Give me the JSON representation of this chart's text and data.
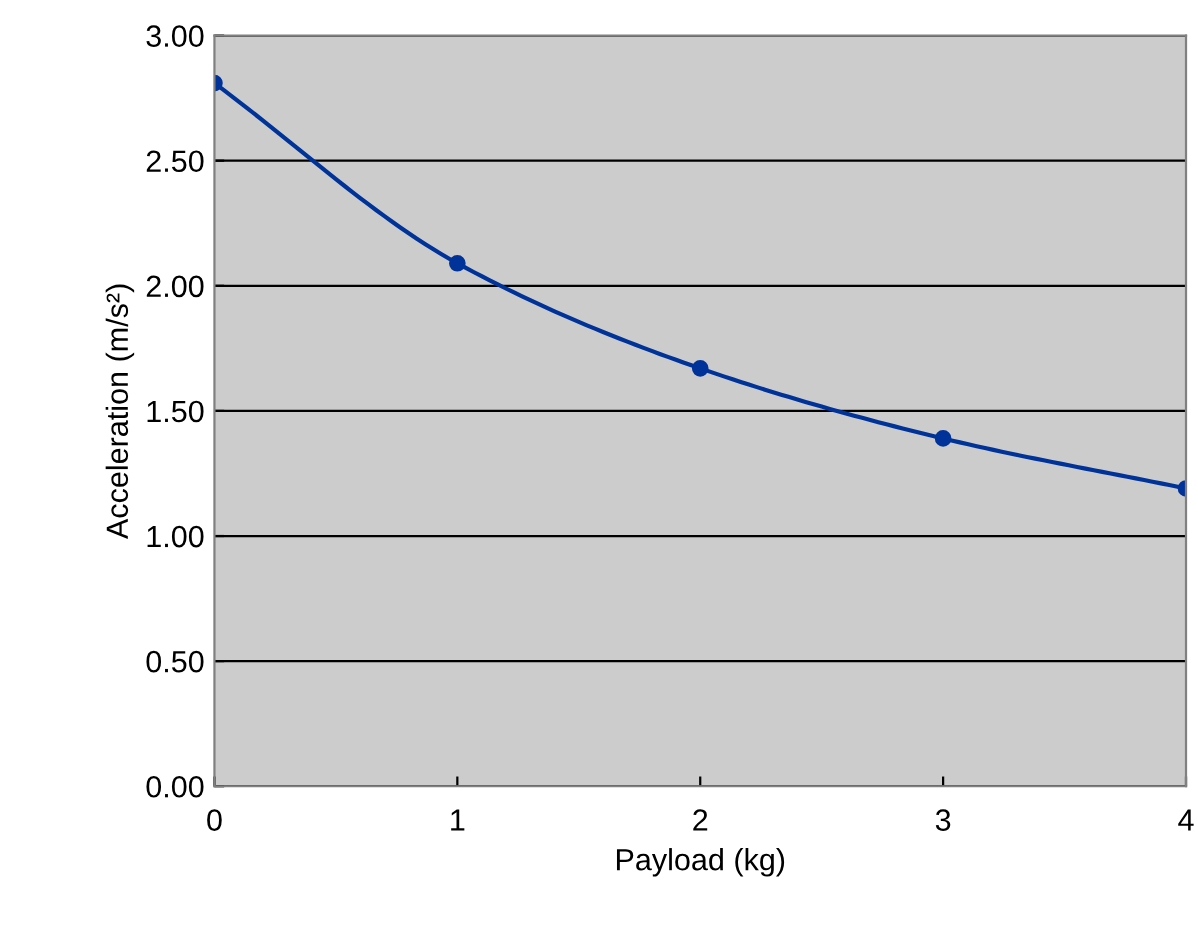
{
  "chart_data": {
    "type": "line",
    "xlabel": "Payload (kg)",
    "ylabel": "Acceleration (m/s²)",
    "x": [
      0,
      1,
      2,
      3,
      4
    ],
    "series": [
      {
        "color": "#003399",
        "values": [
          2.81,
          2.09,
          1.67,
          1.39,
          1.19
        ]
      }
    ],
    "xlim": [
      0,
      4
    ],
    "xticks": [
      0,
      1,
      2,
      3,
      4
    ],
    "ylim": [
      0,
      3
    ],
    "yticks": [
      {
        "value": 0,
        "label": "0.00"
      },
      {
        "value": 0.5,
        "label": "0.50"
      },
      {
        "value": 1,
        "label": "1.00"
      },
      {
        "value": 1.5,
        "label": "1.50"
      },
      {
        "value": 2,
        "label": "2.00"
      },
      {
        "value": 2.5,
        "label": "2.50"
      },
      {
        "value": 3,
        "label": "3.00"
      }
    ],
    "grid": "y",
    "marker": "circle",
    "line_style": "solid"
  }
}
